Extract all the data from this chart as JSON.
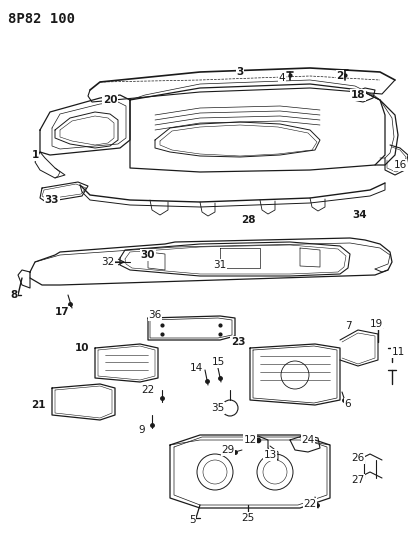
{
  "title": "8P82 100",
  "bg_color": "#ffffff",
  "line_color": "#1a1a1a",
  "title_fontsize": 10,
  "label_fontsize": 7.5,
  "figsize": [
    4.08,
    5.33
  ],
  "dpi": 100
}
